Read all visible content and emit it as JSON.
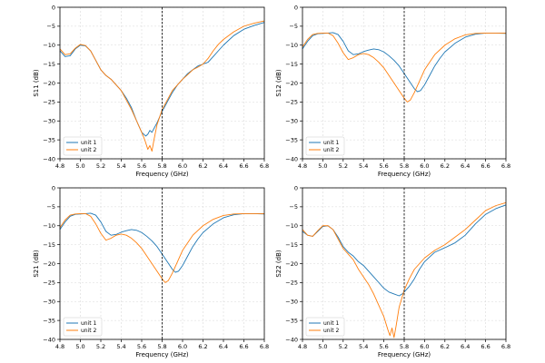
{
  "figure": {
    "background": "#ffffff",
    "grid_color": "#d9d9d9",
    "marker_color": "#000000"
  },
  "chart_data": [
    {
      "type": "line",
      "xlabel": "Frequency (GHz)",
      "ylabel": "S11 (dB)",
      "xlim": [
        4.8,
        6.8
      ],
      "ylim": [
        -40,
        0
      ],
      "xticks": [
        4.8,
        5.0,
        5.2,
        5.4,
        5.6,
        5.8,
        6.0,
        6.2,
        6.4,
        6.6,
        6.8
      ],
      "yticks": [
        0,
        -5,
        -10,
        -15,
        -20,
        -25,
        -30,
        -35,
        -40
      ],
      "grid": true,
      "legend_position": "lower-left",
      "marker_line_x": 5.8,
      "series": [
        {
          "name": "unit 1",
          "color": "#1f77b4",
          "x": [
            4.8,
            4.85,
            4.9,
            4.95,
            5.0,
            5.05,
            5.1,
            5.15,
            5.2,
            5.25,
            5.3,
            5.35,
            5.4,
            5.45,
            5.5,
            5.55,
            5.6,
            5.64,
            5.66,
            5.68,
            5.7,
            5.72,
            5.75,
            5.8,
            5.85,
            5.9,
            5.95,
            6.0,
            6.05,
            6.1,
            6.15,
            6.2,
            6.25,
            6.3,
            6.35,
            6.4,
            6.5,
            6.6,
            6.7,
            6.8
          ],
          "y": [
            -11.5,
            -13,
            -12.8,
            -11,
            -10,
            -10.2,
            -11.5,
            -14,
            -16.5,
            -18,
            -19,
            -20.5,
            -22,
            -24,
            -26.5,
            -30,
            -33,
            -34,
            -33.5,
            -32.5,
            -33,
            -32,
            -30.5,
            -27.5,
            -25,
            -22.5,
            -20.5,
            -19,
            -17.5,
            -16.5,
            -15.5,
            -15,
            -14.5,
            -13,
            -11.5,
            -10,
            -7.5,
            -5.8,
            -4.8,
            -4
          ]
        },
        {
          "name": "unit 2",
          "color": "#ff7f0e",
          "x": [
            4.8,
            4.85,
            4.9,
            4.95,
            5.0,
            5.05,
            5.1,
            5.15,
            5.2,
            5.25,
            5.3,
            5.35,
            5.4,
            5.45,
            5.5,
            5.55,
            5.6,
            5.63,
            5.66,
            5.68,
            5.7,
            5.72,
            5.75,
            5.8,
            5.85,
            5.9,
            5.95,
            6.0,
            6.05,
            6.1,
            6.15,
            6.2,
            6.25,
            6.3,
            6.35,
            6.4,
            6.5,
            6.6,
            6.7,
            6.8
          ],
          "y": [
            -11,
            -12.5,
            -12.3,
            -10.8,
            -9.8,
            -10.1,
            -11.5,
            -14,
            -16.5,
            -18,
            -19,
            -20.5,
            -22,
            -24.5,
            -27,
            -30,
            -33,
            -35,
            -37.5,
            -36.5,
            -38,
            -35,
            -31,
            -27,
            -24.5,
            -22,
            -20.5,
            -19,
            -17.8,
            -16.5,
            -15.8,
            -15,
            -13.5,
            -11.5,
            -9.8,
            -8.5,
            -6.5,
            -5,
            -4.2,
            -3.6
          ]
        }
      ]
    },
    {
      "type": "line",
      "xlabel": "Frequency (GHz)",
      "ylabel": "S12 (dB)",
      "xlim": [
        4.8,
        6.8
      ],
      "ylim": [
        -40,
        0
      ],
      "xticks": [
        4.8,
        5.0,
        5.2,
        5.4,
        5.6,
        5.8,
        6.0,
        6.2,
        6.4,
        6.6,
        6.8
      ],
      "yticks": [
        0,
        -5,
        -10,
        -15,
        -20,
        -25,
        -30,
        -35,
        -40
      ],
      "grid": true,
      "legend_position": "lower-left",
      "marker_line_x": 5.8,
      "series": [
        {
          "name": "unit 1",
          "color": "#1f77b4",
          "x": [
            4.8,
            4.85,
            4.9,
            4.95,
            5.0,
            5.05,
            5.1,
            5.15,
            5.2,
            5.25,
            5.3,
            5.35,
            5.4,
            5.45,
            5.5,
            5.55,
            5.6,
            5.65,
            5.7,
            5.75,
            5.8,
            5.85,
            5.9,
            5.93,
            5.96,
            6.0,
            6.05,
            6.1,
            6.15,
            6.2,
            6.3,
            6.4,
            6.5,
            6.6,
            6.7,
            6.8
          ],
          "y": [
            -11,
            -9,
            -7.5,
            -7,
            -6.9,
            -6.8,
            -6.7,
            -7.2,
            -9,
            -11.5,
            -12.5,
            -12.3,
            -11.7,
            -11.3,
            -11,
            -11.2,
            -11.8,
            -12.8,
            -14,
            -15.5,
            -17.5,
            -19.5,
            -21.5,
            -22.3,
            -22,
            -20.5,
            -18,
            -15.5,
            -13.5,
            -11.8,
            -9.5,
            -7.9,
            -7.1,
            -6.8,
            -6.8,
            -6.9
          ]
        },
        {
          "name": "unit 2",
          "color": "#ff7f0e",
          "x": [
            4.8,
            4.85,
            4.9,
            4.95,
            5.0,
            5.05,
            5.1,
            5.15,
            5.2,
            5.25,
            5.3,
            5.35,
            5.4,
            5.45,
            5.5,
            5.55,
            5.6,
            5.65,
            5.7,
            5.75,
            5.8,
            5.83,
            5.86,
            5.9,
            5.95,
            6.0,
            6.1,
            6.2,
            6.3,
            6.4,
            6.5,
            6.6,
            6.7,
            6.8
          ],
          "y": [
            -10.5,
            -8.5,
            -7.2,
            -6.9,
            -6.8,
            -6.8,
            -7.5,
            -9.5,
            -12,
            -13.8,
            -13.3,
            -12.5,
            -12.2,
            -12.5,
            -13.3,
            -14.5,
            -16,
            -18,
            -20,
            -22,
            -24,
            -25,
            -24.5,
            -22.5,
            -19.5,
            -16.5,
            -12.5,
            -10,
            -8.3,
            -7.3,
            -6.9,
            -6.8,
            -6.8,
            -6.8
          ]
        }
      ]
    },
    {
      "type": "line",
      "xlabel": "Frequency (GHz)",
      "ylabel": "S21 (dB)",
      "xlim": [
        4.8,
        6.8
      ],
      "ylim": [
        -40,
        0
      ],
      "xticks": [
        4.8,
        5.0,
        5.2,
        5.4,
        5.6,
        5.8,
        6.0,
        6.2,
        6.4,
        6.6,
        6.8
      ],
      "yticks": [
        0,
        -5,
        -10,
        -15,
        -20,
        -25,
        -30,
        -35,
        -40
      ],
      "grid": true,
      "legend_position": "lower-left",
      "marker_line_x": 5.8,
      "series": [
        {
          "name": "unit 1",
          "color": "#1f77b4",
          "x": [
            4.8,
            4.85,
            4.9,
            4.95,
            5.0,
            5.05,
            5.1,
            5.15,
            5.2,
            5.25,
            5.3,
            5.35,
            5.4,
            5.45,
            5.5,
            5.55,
            5.6,
            5.65,
            5.7,
            5.75,
            5.8,
            5.85,
            5.9,
            5.93,
            5.96,
            6.0,
            6.05,
            6.1,
            6.15,
            6.2,
            6.3,
            6.4,
            6.5,
            6.6,
            6.7,
            6.8
          ],
          "y": [
            -11,
            -9,
            -7.5,
            -7,
            -6.9,
            -6.8,
            -6.7,
            -7.2,
            -9,
            -11.5,
            -12.5,
            -12.3,
            -11.7,
            -11.3,
            -11,
            -11.2,
            -11.8,
            -12.8,
            -14,
            -15.5,
            -17.5,
            -19.5,
            -21.5,
            -22.3,
            -22,
            -20.5,
            -18,
            -15.5,
            -13.5,
            -11.8,
            -9.5,
            -7.9,
            -7.1,
            -6.8,
            -6.8,
            -6.9
          ]
        },
        {
          "name": "unit 2",
          "color": "#ff7f0e",
          "x": [
            4.8,
            4.85,
            4.9,
            4.95,
            5.0,
            5.05,
            5.1,
            5.15,
            5.2,
            5.25,
            5.3,
            5.35,
            5.4,
            5.45,
            5.5,
            5.55,
            5.6,
            5.65,
            5.7,
            5.75,
            5.8,
            5.83,
            5.86,
            5.9,
            5.95,
            6.0,
            6.1,
            6.2,
            6.3,
            6.4,
            6.5,
            6.6,
            6.7,
            6.8
          ],
          "y": [
            -10.5,
            -8.5,
            -7.2,
            -6.9,
            -6.8,
            -6.8,
            -7.5,
            -9.5,
            -12,
            -13.8,
            -13.3,
            -12.5,
            -12.2,
            -12.5,
            -13.3,
            -14.5,
            -16,
            -18,
            -20,
            -22,
            -24,
            -25,
            -24.5,
            -22.5,
            -19.5,
            -16.5,
            -12.5,
            -10,
            -8.3,
            -7.3,
            -6.9,
            -6.8,
            -6.8,
            -6.8
          ]
        }
      ]
    },
    {
      "type": "line",
      "xlabel": "Frequency (GHz)",
      "ylabel": "S22 (dB)",
      "xlim": [
        4.8,
        6.8
      ],
      "ylim": [
        -40,
        0
      ],
      "xticks": [
        4.8,
        5.0,
        5.2,
        5.4,
        5.6,
        5.8,
        6.0,
        6.2,
        6.4,
        6.6,
        6.8
      ],
      "yticks": [
        0,
        -5,
        -10,
        -15,
        -20,
        -25,
        -30,
        -35,
        -40
      ],
      "grid": true,
      "legend_position": "lower-left",
      "marker_line_x": 5.8,
      "series": [
        {
          "name": "unit 1",
          "color": "#1f77b4",
          "x": [
            4.8,
            4.85,
            4.9,
            4.95,
            5.0,
            5.05,
            5.1,
            5.15,
            5.2,
            5.25,
            5.3,
            5.35,
            5.4,
            5.45,
            5.5,
            5.55,
            5.6,
            5.65,
            5.7,
            5.75,
            5.78,
            5.8,
            5.85,
            5.9,
            5.95,
            6.0,
            6.1,
            6.2,
            6.3,
            6.4,
            6.5,
            6.6,
            6.7,
            6.8
          ],
          "y": [
            -11.5,
            -12.5,
            -12.8,
            -11.5,
            -10.2,
            -10,
            -11,
            -13,
            -15.5,
            -17,
            -18,
            -19.5,
            -20.5,
            -22,
            -23.5,
            -25,
            -26.5,
            -27.5,
            -28,
            -28.5,
            -28,
            -27.5,
            -26,
            -24,
            -21.5,
            -19.5,
            -17,
            -15.8,
            -14.5,
            -12.5,
            -9.5,
            -7,
            -5.5,
            -4.5
          ]
        },
        {
          "name": "unit 2",
          "color": "#ff7f0e",
          "x": [
            4.8,
            4.85,
            4.9,
            4.95,
            5.0,
            5.05,
            5.1,
            5.15,
            5.2,
            5.25,
            5.3,
            5.35,
            5.4,
            5.45,
            5.5,
            5.55,
            5.6,
            5.64,
            5.66,
            5.68,
            5.7,
            5.72,
            5.75,
            5.8,
            5.85,
            5.9,
            5.95,
            6.0,
            6.1,
            6.2,
            6.3,
            6.4,
            6.5,
            6.6,
            6.7,
            6.8
          ],
          "y": [
            -11,
            -12.5,
            -12.8,
            -11.3,
            -10,
            -10,
            -11,
            -13.5,
            -16,
            -17.5,
            -19,
            -21.5,
            -23.5,
            -25.5,
            -28,
            -31,
            -34,
            -37.5,
            -39,
            -37,
            -39.5,
            -36.5,
            -31.5,
            -27,
            -24,
            -21.5,
            -20,
            -18.5,
            -16.5,
            -15,
            -13,
            -11,
            -8.5,
            -6,
            -4.7,
            -3.9
          ]
        }
      ]
    }
  ]
}
